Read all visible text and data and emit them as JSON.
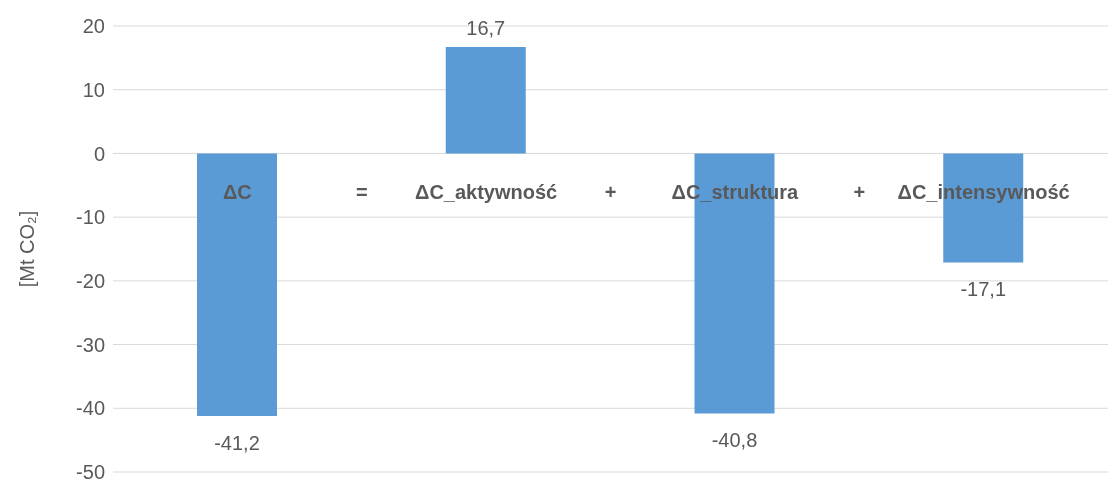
{
  "chart_data": {
    "type": "bar",
    "ylabel": "[Mt CO₂]",
    "categories": [
      "ΔC",
      "ΔC_aktywność",
      "ΔC_struktura",
      "ΔC_intensywność"
    ],
    "values": [
      -41.2,
      16.7,
      -40.8,
      -17.1
    ],
    "value_labels": [
      "-41,2",
      "16,7",
      "-40,8",
      "-17,1"
    ],
    "color": "#5b9bd5",
    "annotations": [
      "=",
      "+",
      "+"
    ],
    "ylim": [
      -50,
      20
    ],
    "yticks": [
      -50,
      -40,
      -30,
      -20,
      -10,
      0,
      10,
      20
    ],
    "grid": "y",
    "legend": false
  }
}
